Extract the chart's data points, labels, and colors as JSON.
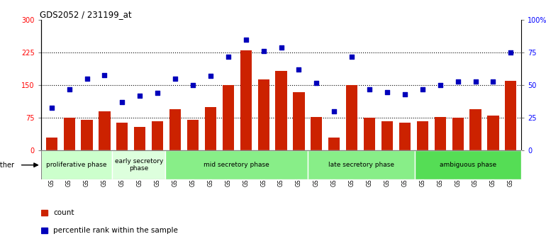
{
  "title": "GDS2052 / 231199_at",
  "categories": [
    "GSM109814",
    "GSM109815",
    "GSM109816",
    "GSM109817",
    "GSM109820",
    "GSM109821",
    "GSM109822",
    "GSM109824",
    "GSM109825",
    "GSM109826",
    "GSM109827",
    "GSM109828",
    "GSM109829",
    "GSM109830",
    "GSM109831",
    "GSM109834",
    "GSM109835",
    "GSM109836",
    "GSM109837",
    "GSM109838",
    "GSM109839",
    "GSM109818",
    "GSM109819",
    "GSM109823",
    "GSM109832",
    "GSM109833",
    "GSM109840"
  ],
  "bar_values": [
    30,
    75,
    70,
    90,
    65,
    55,
    68,
    95,
    70,
    100,
    150,
    230,
    163,
    183,
    135,
    78,
    30,
    150,
    75,
    68,
    65,
    68,
    78,
    75,
    95,
    80,
    160
  ],
  "dot_values_pct": [
    33,
    47,
    55,
    58,
    37,
    42,
    44,
    55,
    50,
    57,
    72,
    85,
    76,
    79,
    62,
    52,
    30,
    72,
    47,
    45,
    43,
    47,
    50,
    53,
    53,
    53,
    75
  ],
  "bar_color": "#cc2200",
  "dot_color": "#0000bb",
  "ylim_left": [
    0,
    300
  ],
  "ylim_right": [
    0,
    100
  ],
  "yticks_left": [
    0,
    75,
    150,
    225,
    300
  ],
  "yticks_right": [
    0,
    25,
    50,
    75,
    100
  ],
  "ytick_labels_right": [
    "0",
    "25",
    "50",
    "75",
    "100%"
  ],
  "hline_values": [
    75,
    150,
    225
  ],
  "phase_groups": [
    {
      "label": "proliferative phase",
      "start": 0,
      "end": 4,
      "color": "#ccffcc"
    },
    {
      "label": "early secretory\nphase",
      "start": 4,
      "end": 7,
      "color": "#ddffdd"
    },
    {
      "label": "mid secretory phase",
      "start": 7,
      "end": 15,
      "color": "#88ee88"
    },
    {
      "label": "late secretory phase",
      "start": 15,
      "end": 21,
      "color": "#88ee88"
    },
    {
      "label": "ambiguous phase",
      "start": 21,
      "end": 27,
      "color": "#55dd55"
    }
  ],
  "other_label": "other",
  "legend_count_label": "count",
  "legend_pct_label": "percentile rank within the sample",
  "plot_bg_color": "#ffffff",
  "tick_area_bg": "#d8d8d8"
}
